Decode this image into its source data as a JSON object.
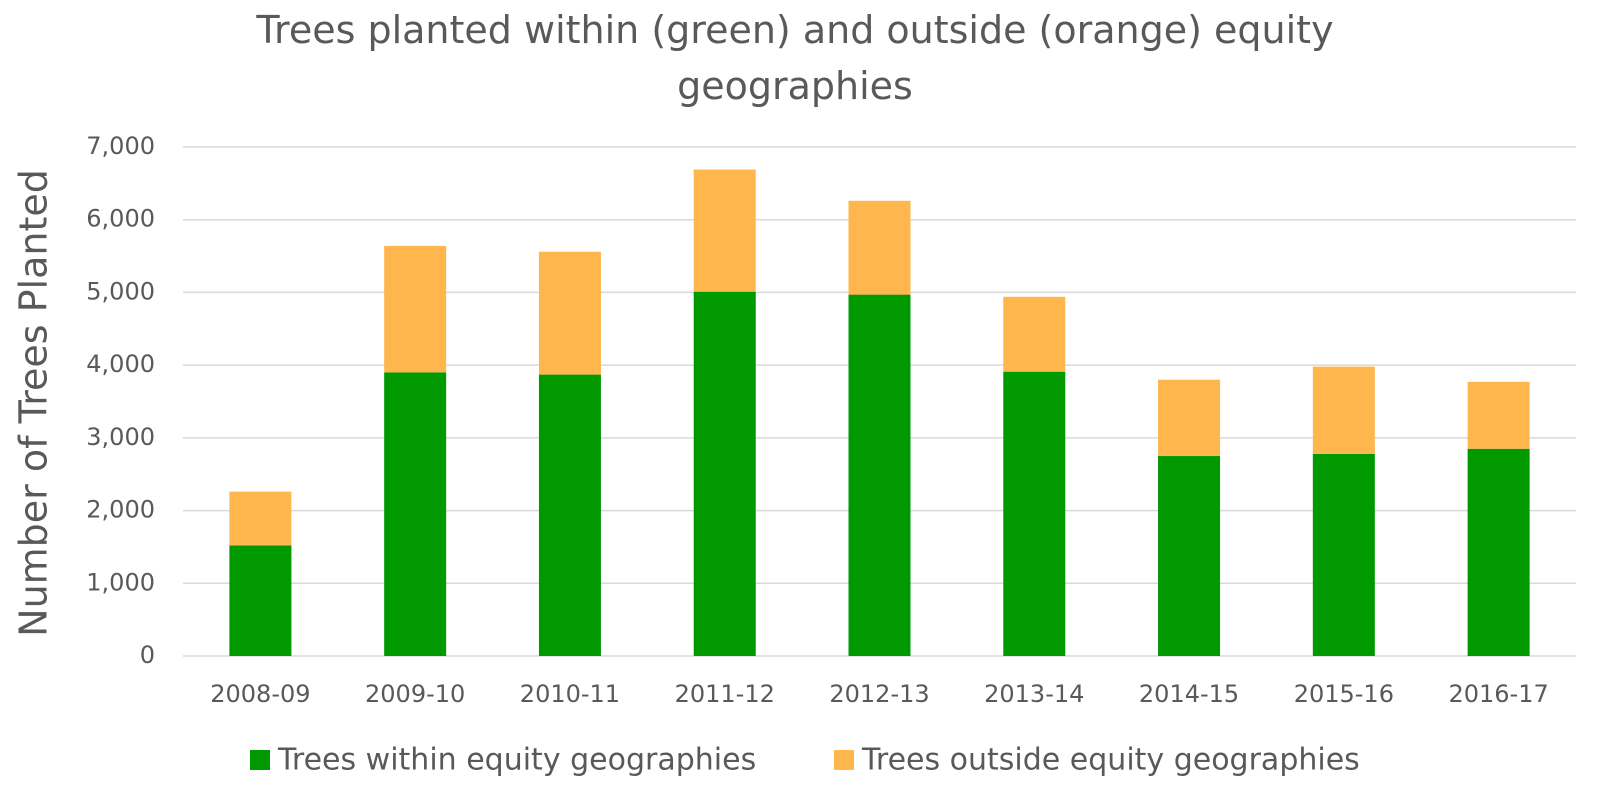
{
  "chart_data": {
    "type": "bar",
    "stacked": true,
    "title": "Trees planted within (green) and outside (orange) equity geographies",
    "y_label": "Number of Trees Planted",
    "categories": [
      "2008-09",
      "2009-10",
      "2010-11",
      "2011-12",
      "2012-13",
      "2013-14",
      "2014-15",
      "2015-16",
      "2016-17"
    ],
    "series": [
      {
        "name": "Trees within equity geographies",
        "color": "#009900",
        "values": [
          1520,
          3900,
          3870,
          5010,
          4970,
          3910,
          2750,
          2780,
          2850
        ]
      },
      {
        "name": "Trees outside equity geographies",
        "color": "#ffb64d",
        "values": [
          740,
          1740,
          1690,
          1680,
          1290,
          1030,
          1050,
          1200,
          920
        ]
      }
    ],
    "ylim": [
      0,
      7000
    ],
    "yticks": [
      0,
      {
        "value": 1000,
        "label": "1,000"
      },
      {
        "value": 2000,
        "label": "2,000"
      },
      {
        "value": 3000,
        "label": "3,000"
      },
      {
        "value": 4000,
        "label": "4,000"
      },
      {
        "value": 5000,
        "label": "5,000"
      },
      {
        "value": 6000,
        "label": "6,000"
      },
      {
        "value": 7000,
        "label": "7,000"
      }
    ],
    "grid": true,
    "legend": "bottom"
  }
}
